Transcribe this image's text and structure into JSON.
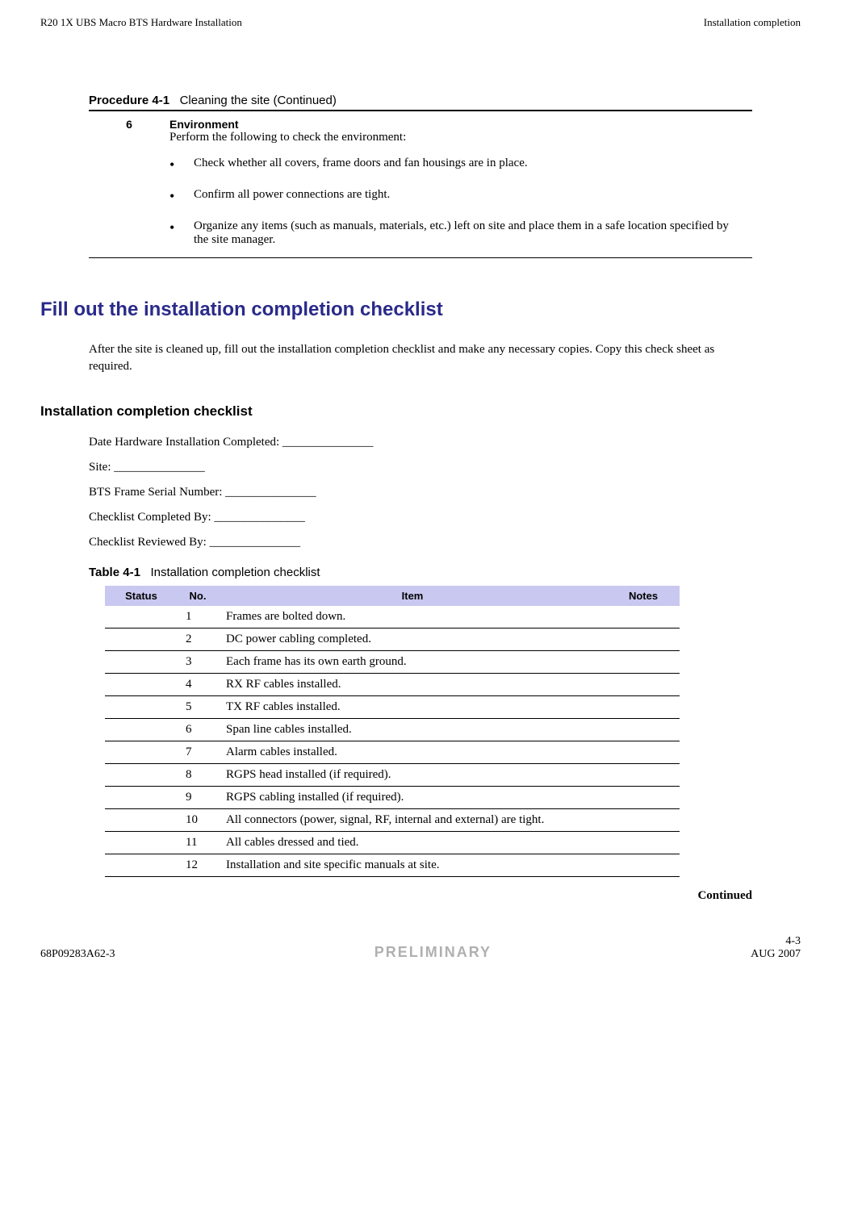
{
  "header": {
    "left": "R20 1X UBS Macro BTS Hardware Installation",
    "right": "Installation completion"
  },
  "procedure": {
    "label": "Procedure 4-1",
    "title": "Cleaning the site (Continued)",
    "step_num": "6",
    "step_title": "Environment",
    "step_intro": "Perform the following to check the environment:",
    "bullets": [
      "Check whether all covers, frame doors and fan housings are in place.",
      "Confirm all power connections are tight.",
      "Organize any items (such as manuals, materials, etc.) left on site and place them in a safe location specified by the site manager."
    ]
  },
  "section1": {
    "heading": "Fill out the installation completion checklist",
    "body": "After the site is cleaned up, fill out the installation completion checklist and make any necessary copies. Copy this check sheet as required."
  },
  "section2": {
    "heading": "Installation completion checklist",
    "fields": [
      "Date Hardware Installation Completed: _______________",
      "Site: _______________",
      "BTS Frame Serial Number: _______________",
      "Checklist Completed By: _______________",
      "Checklist Reviewed By: _______________"
    ]
  },
  "table": {
    "label": "Table 4-1",
    "title": "Installation completion checklist",
    "columns": [
      "Status",
      "No.",
      "Item",
      "Notes"
    ],
    "rows": [
      {
        "no": "1",
        "item": "Frames are bolted down."
      },
      {
        "no": "2",
        "item": "DC power cabling completed."
      },
      {
        "no": "3",
        "item": "Each frame has its own earth ground."
      },
      {
        "no": "4",
        "item": "RX RF cables installed."
      },
      {
        "no": "5",
        "item": "TX RF cables installed."
      },
      {
        "no": "6",
        "item": "Span line cables installed."
      },
      {
        "no": "7",
        "item": "Alarm cables installed."
      },
      {
        "no": "8",
        "item": "RGPS head installed (if required)."
      },
      {
        "no": "9",
        "item": "RGPS cabling installed (if required)."
      },
      {
        "no": "10",
        "item": "All connectors (power, signal, RF, internal and external) are tight."
      },
      {
        "no": "11",
        "item": "All cables dressed and tied."
      },
      {
        "no": "12",
        "item": "Installation and site specific manuals at site."
      }
    ],
    "continued": "Continued"
  },
  "footer": {
    "left": "68P09283A62-3",
    "center": "PRELIMINARY",
    "right_page": "4-3",
    "right_date": "AUG 2007"
  }
}
